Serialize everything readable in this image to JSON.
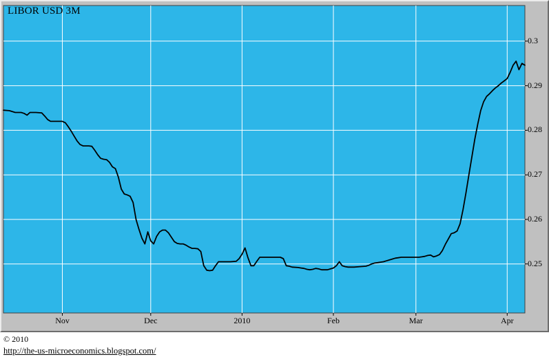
{
  "chart_data": {
    "type": "line",
    "title": "LIBOR USD 3M",
    "xlabel": "",
    "ylabel": "",
    "grid": true,
    "legend": "none",
    "colors": {
      "plot_bg": "#2db6e8",
      "grid": "#ffffff",
      "line": "#000000",
      "panel_bg": "#c0c0c0"
    },
    "x_axis": {
      "range": [
        0,
        177
      ],
      "ticks": [
        {
          "x": 20,
          "label": "Nov"
        },
        {
          "x": 50,
          "label": "Dec"
        },
        {
          "x": 81,
          "label": "2010"
        },
        {
          "x": 112,
          "label": "Feb"
        },
        {
          "x": 140,
          "label": "Mar"
        },
        {
          "x": 171,
          "label": "Apr"
        }
      ]
    },
    "y_axis": {
      "range": [
        0.239,
        0.308
      ],
      "side": "right",
      "ticks": [
        {
          "y": 0.3,
          "label": "0.3"
        },
        {
          "y": 0.29,
          "label": "0.29"
        },
        {
          "y": 0.28,
          "label": "0.28"
        },
        {
          "y": 0.27,
          "label": "0.27"
        },
        {
          "y": 0.26,
          "label": "0.26"
        },
        {
          "y": 0.25,
          "label": "0.25"
        }
      ]
    },
    "series": [
      {
        "name": "LIBOR USD 3M",
        "points": [
          [
            0,
            0.2845
          ],
          [
            2,
            0.2844
          ],
          [
            4,
            0.284
          ],
          [
            6,
            0.284
          ],
          [
            7,
            0.2838
          ],
          [
            8,
            0.2834
          ],
          [
            9,
            0.284
          ],
          [
            11,
            0.284
          ],
          [
            13,
            0.2839
          ],
          [
            14,
            0.2832
          ],
          [
            15,
            0.2824
          ],
          [
            16,
            0.282
          ],
          [
            18,
            0.282
          ],
          [
            20,
            0.282
          ],
          [
            21,
            0.2817
          ],
          [
            22,
            0.2808
          ],
          [
            23,
            0.2798
          ],
          [
            24,
            0.2787
          ],
          [
            25,
            0.2776
          ],
          [
            26,
            0.2768
          ],
          [
            27,
            0.2765
          ],
          [
            29,
            0.2765
          ],
          [
            30,
            0.2764
          ],
          [
            31,
            0.2755
          ],
          [
            32,
            0.2745
          ],
          [
            33,
            0.2737
          ],
          [
            34,
            0.2735
          ],
          [
            35,
            0.2734
          ],
          [
            36,
            0.2728
          ],
          [
            37,
            0.2718
          ],
          [
            38,
            0.2714
          ],
          [
            39,
            0.2695
          ],
          [
            40,
            0.2668
          ],
          [
            41,
            0.2657
          ],
          [
            42,
            0.2655
          ],
          [
            43,
            0.2652
          ],
          [
            44,
            0.2638
          ],
          [
            45,
            0.26
          ],
          [
            46,
            0.2578
          ],
          [
            47,
            0.2558
          ],
          [
            48,
            0.2545
          ],
          [
            49,
            0.2572
          ],
          [
            50,
            0.2552
          ],
          [
            51,
            0.2545
          ],
          [
            52,
            0.2562
          ],
          [
            53,
            0.2572
          ],
          [
            54,
            0.2576
          ],
          [
            55,
            0.2576
          ],
          [
            56,
            0.257
          ],
          [
            57,
            0.256
          ],
          [
            58,
            0.255
          ],
          [
            59,
            0.2546
          ],
          [
            60,
            0.2545
          ],
          [
            61,
            0.2545
          ],
          [
            62,
            0.2542
          ],
          [
            63,
            0.2538
          ],
          [
            64,
            0.2535
          ],
          [
            65,
            0.2535
          ],
          [
            66,
            0.2534
          ],
          [
            67,
            0.2528
          ],
          [
            68,
            0.2496
          ],
          [
            69,
            0.2486
          ],
          [
            70,
            0.2485
          ],
          [
            71,
            0.2486
          ],
          [
            72,
            0.2496
          ],
          [
            73,
            0.2505
          ],
          [
            75,
            0.2505
          ],
          [
            77,
            0.2505
          ],
          [
            79,
            0.2506
          ],
          [
            80,
            0.2512
          ],
          [
            81,
            0.2522
          ],
          [
            82,
            0.2536
          ],
          [
            83,
            0.2514
          ],
          [
            84,
            0.2496
          ],
          [
            85,
            0.2496
          ],
          [
            86,
            0.2506
          ],
          [
            87,
            0.2515
          ],
          [
            89,
            0.2515
          ],
          [
            91,
            0.2515
          ],
          [
            93,
            0.2515
          ],
          [
            94,
            0.2515
          ],
          [
            95,
            0.2512
          ],
          [
            96,
            0.2496
          ],
          [
            97,
            0.2495
          ],
          [
            98,
            0.2493
          ],
          [
            100,
            0.2492
          ],
          [
            101,
            0.2491
          ],
          [
            102,
            0.249
          ],
          [
            103,
            0.2488
          ],
          [
            104,
            0.2487
          ],
          [
            105,
            0.2488
          ],
          [
            106,
            0.249
          ],
          [
            107,
            0.2489
          ],
          [
            108,
            0.2487
          ],
          [
            109,
            0.2487
          ],
          [
            110,
            0.2487
          ],
          [
            111,
            0.2489
          ],
          [
            112,
            0.2491
          ],
          [
            113,
            0.2496
          ],
          [
            114,
            0.2505
          ],
          [
            115,
            0.2496
          ],
          [
            116,
            0.2494
          ],
          [
            117,
            0.2493
          ],
          [
            119,
            0.2493
          ],
          [
            121,
            0.2494
          ],
          [
            123,
            0.2495
          ],
          [
            124,
            0.2497
          ],
          [
            125,
            0.25
          ],
          [
            126,
            0.2502
          ],
          [
            127,
            0.2503
          ],
          [
            128,
            0.2504
          ],
          [
            129,
            0.2505
          ],
          [
            130,
            0.2507
          ],
          [
            131,
            0.2509
          ],
          [
            132,
            0.2511
          ],
          [
            133,
            0.2513
          ],
          [
            134,
            0.2514
          ],
          [
            135,
            0.2515
          ],
          [
            137,
            0.2515
          ],
          [
            139,
            0.2515
          ],
          [
            140,
            0.2515
          ],
          [
            141,
            0.2515
          ],
          [
            142,
            0.2516
          ],
          [
            143,
            0.2517
          ],
          [
            144,
            0.2519
          ],
          [
            145,
            0.252
          ],
          [
            146,
            0.2516
          ],
          [
            147,
            0.2518
          ],
          [
            148,
            0.2521
          ],
          [
            149,
            0.253
          ],
          [
            150,
            0.2544
          ],
          [
            151,
            0.2556
          ],
          [
            152,
            0.2568
          ],
          [
            153,
            0.257
          ],
          [
            154,
            0.2574
          ],
          [
            155,
            0.259
          ],
          [
            156,
            0.2622
          ],
          [
            157,
            0.266
          ],
          [
            158,
            0.27
          ],
          [
            159,
            0.274
          ],
          [
            160,
            0.278
          ],
          [
            161,
            0.2814
          ],
          [
            162,
            0.2844
          ],
          [
            163,
            0.2864
          ],
          [
            164,
            0.2876
          ],
          [
            165,
            0.2882
          ],
          [
            166,
            0.2889
          ],
          [
            167,
            0.2895
          ],
          [
            168,
            0.29
          ],
          [
            169,
            0.2906
          ],
          [
            170,
            0.2911
          ],
          [
            171,
            0.2916
          ],
          [
            172,
            0.293
          ],
          [
            173,
            0.2946
          ],
          [
            174,
            0.2955
          ],
          [
            175,
            0.2936
          ],
          [
            176,
            0.295
          ],
          [
            177,
            0.2946
          ]
        ]
      }
    ]
  },
  "footer": {
    "copyright": "© 2010",
    "link": "http://the-us-microeconomics.blogspot.com/"
  }
}
